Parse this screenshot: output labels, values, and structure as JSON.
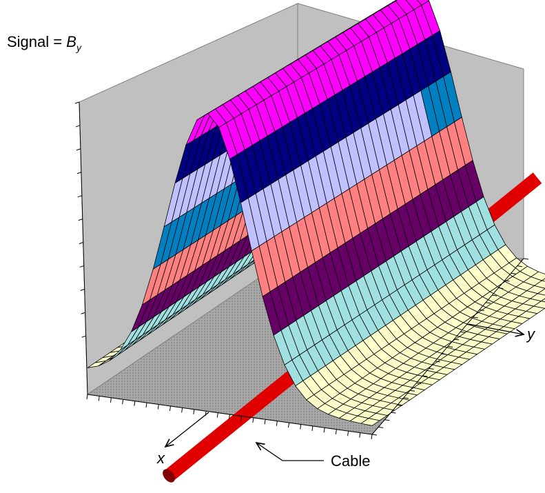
{
  "labels": {
    "signal_prefix": "Signal =",
    "signal_symbol": "B",
    "signal_subscript": "y",
    "x_axis": "x",
    "y_axis": "y",
    "cable": "Cable"
  }
}
